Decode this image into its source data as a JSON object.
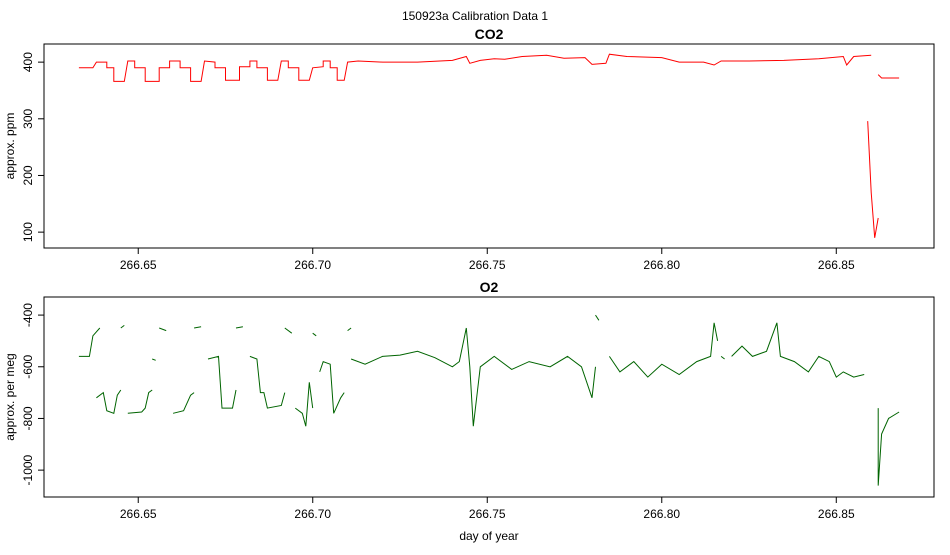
{
  "suptitle": "150923a   Calibration Data 1",
  "chart_data": [
    {
      "type": "line",
      "title": "CO2",
      "y_label": "approx. ppm",
      "color": "#ff0000",
      "xlim": [
        266.623,
        266.878
      ],
      "ylim": [
        72,
        432
      ],
      "xticks": [
        266.65,
        {
          "value": 266.7,
          "label": "266.70"
        },
        266.75,
        {
          "value": 266.8,
          "label": "266.80"
        },
        266.85
      ],
      "yticks": [
        100,
        200,
        300,
        400
      ],
      "x": [
        266.633,
        266.637,
        266.638,
        266.641,
        266.641,
        266.643,
        266.643,
        266.646,
        266.647,
        266.649,
        266.649,
        266.652,
        266.652,
        266.656,
        266.656,
        266.659,
        266.659,
        266.662,
        266.662,
        266.665,
        266.665,
        266.668,
        266.669,
        266.672,
        266.672,
        266.675,
        266.675,
        266.679,
        266.679,
        266.682,
        266.682,
        266.684,
        266.684,
        266.687,
        266.687,
        266.69,
        266.691,
        266.693,
        266.693,
        266.696,
        266.696,
        266.699,
        266.7,
        266.703,
        266.703,
        266.705,
        266.705,
        266.707,
        266.707,
        266.709,
        266.71,
        266.713,
        266.72,
        266.73,
        266.74,
        266.744,
        266.745,
        266.748,
        266.752,
        266.755,
        266.76,
        266.767,
        266.772,
        266.778,
        266.78,
        266.784,
        266.785,
        266.79,
        266.8,
        266.805,
        266.812,
        266.815,
        266.817,
        266.825,
        266.835,
        266.845,
        266.852,
        266.853,
        266.855,
        266.86,
        266.86,
        266.859,
        266.86,
        266.861,
        266.862,
        266.862,
        266.862,
        266.863,
        266.868
      ],
      "values": [
        390,
        390,
        400,
        400,
        390,
        390,
        366,
        366,
        402,
        402,
        390,
        390,
        366,
        366,
        390,
        390,
        402,
        402,
        390,
        390,
        366,
        366,
        402,
        400,
        390,
        390,
        368,
        368,
        392,
        392,
        402,
        402,
        390,
        390,
        368,
        368,
        402,
        402,
        390,
        390,
        368,
        368,
        390,
        392,
        402,
        402,
        390,
        390,
        368,
        368,
        400,
        402,
        400,
        400,
        403,
        410,
        398,
        403,
        406,
        405,
        410,
        412,
        407,
        408,
        396,
        398,
        414,
        410,
        408,
        400,
        400,
        395,
        402,
        402,
        403,
        406,
        410,
        395,
        410,
        412,
        null,
        296,
        170,
        90,
        125,
        null,
        378,
        372,
        372
      ]
    },
    {
      "type": "line",
      "title": "O2",
      "y_label": "approx. per meg",
      "x_label": "day of year",
      "color": "#006400",
      "xlim": [
        266.623,
        266.878
      ],
      "ylim": [
        -1104,
        -330
      ],
      "xticks": [
        266.65,
        {
          "value": 266.7,
          "label": "266.70"
        },
        266.75,
        {
          "value": 266.8,
          "label": "266.80"
        },
        266.85
      ],
      "yticks": [
        -1000,
        -800,
        -600,
        -400
      ],
      "x": [
        266.633,
        266.636,
        266.637,
        266.639,
        266.639,
        266.638,
        266.64,
        266.641,
        266.643,
        266.644,
        266.645,
        266.645,
        266.645,
        266.646,
        266.646,
        266.647,
        266.651,
        266.652,
        266.653,
        266.654,
        266.654,
        266.654,
        266.655,
        266.655,
        266.656,
        266.658,
        266.658,
        266.66,
        266.663,
        266.665,
        266.666,
        266.666,
        266.666,
        266.668,
        266.668,
        266.67,
        266.673,
        266.674,
        266.677,
        266.678,
        266.678,
        266.678,
        266.68,
        266.68,
        266.682,
        266.684,
        266.685,
        266.686,
        266.687,
        266.691,
        266.692,
        266.692,
        266.692,
        266.694,
        266.694,
        266.695,
        266.697,
        266.698,
        266.699,
        266.7,
        266.7,
        266.7,
        266.701,
        266.701,
        266.702,
        266.703,
        266.705,
        266.706,
        266.708,
        266.709,
        266.709,
        266.71,
        266.711,
        266.711,
        266.711,
        266.715,
        266.72,
        266.725,
        266.73,
        266.735,
        266.74,
        266.742,
        266.744,
        266.745,
        266.746,
        266.748,
        266.752,
        266.757,
        266.762,
        266.768,
        266.773,
        266.777,
        266.78,
        266.781,
        266.781,
        266.781,
        266.782,
        266.782,
        266.785,
        266.788,
        266.792,
        266.796,
        266.8,
        266.805,
        266.81,
        266.814,
        266.815,
        266.816,
        266.816,
        266.817,
        266.818,
        266.818,
        266.82,
        266.823,
        266.826,
        266.83,
        266.833,
        266.834,
        266.838,
        266.842,
        266.845,
        266.848,
        266.85,
        266.852,
        266.855,
        266.858,
        266.858,
        266.862,
        266.862,
        266.863,
        266.865,
        266.868
      ],
      "values": [
        -560,
        -560,
        -480,
        -450,
        null,
        -720,
        -700,
        -770,
        -780,
        -710,
        -690,
        null,
        -450,
        -440,
        null,
        -780,
        -775,
        -760,
        -700,
        -690,
        null,
        -570,
        -575,
        null,
        -450,
        -460,
        null,
        -780,
        -770,
        -710,
        -700,
        null,
        -450,
        -445,
        null,
        -570,
        -560,
        -760,
        -760,
        -690,
        null,
        -450,
        -445,
        null,
        -560,
        -570,
        -700,
        -700,
        -760,
        -750,
        -700,
        null,
        -450,
        -470,
        null,
        -760,
        -780,
        -830,
        -660,
        -760,
        null,
        -470,
        -480,
        null,
        -620,
        -580,
        -590,
        -780,
        -720,
        -700,
        null,
        -460,
        -450,
        null,
        -570,
        -590,
        -560,
        -555,
        -540,
        -565,
        -600,
        -580,
        -450,
        -600,
        -830,
        -600,
        -560,
        -610,
        -580,
        -600,
        -560,
        -600,
        -720,
        -600,
        null,
        -400,
        -420,
        null,
        -560,
        -620,
        -580,
        -640,
        -590,
        -630,
        -580,
        -560,
        -430,
        -500,
        null,
        -560,
        -570,
        null,
        -560,
        -520,
        -560,
        -540,
        -430,
        -560,
        -580,
        -620,
        -560,
        -580,
        -640,
        -620,
        -640,
        -630,
        null,
        -760,
        -1060,
        -860,
        -800,
        -775
      ]
    }
  ]
}
